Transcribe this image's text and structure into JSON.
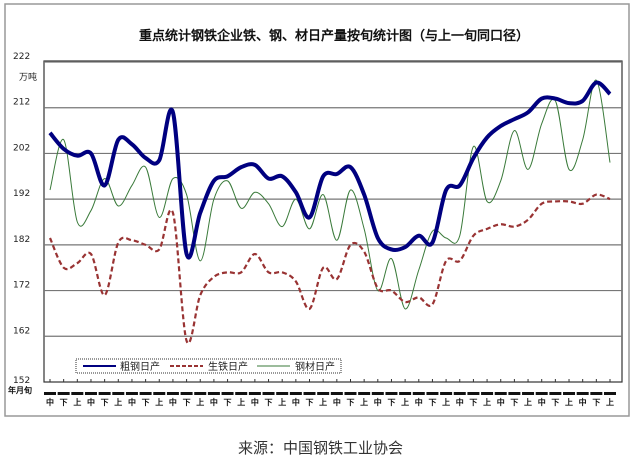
{
  "chart_data": {
    "type": "line",
    "title": "重点统计钢铁企业铁、钢、材日产量按旬统计图（与上一旬同口径）",
    "ylabel": "万吨",
    "xlabel": "年月旬",
    "ylim": [
      152,
      222
    ],
    "yticks": [
      222,
      212,
      202,
      192,
      182,
      172,
      162,
      152
    ],
    "grid": true,
    "legend_position": "bottom-left",
    "x_tenday_labels": [
      "中",
      "下",
      "上",
      "中",
      "下",
      "上",
      "中",
      "下",
      "上",
      "中",
      "下",
      "上",
      "中",
      "下",
      "上",
      "中",
      "下",
      "上",
      "中",
      "下",
      "上",
      "中",
      "下",
      "上",
      "中",
      "下",
      "上",
      "中",
      "下",
      "上",
      "中",
      "下",
      "上",
      "中",
      "下",
      "上",
      "中",
      "下",
      "上",
      "中",
      "下",
      "上"
    ],
    "series": [
      {
        "name": "粗钢日产",
        "color": "#000080",
        "style": "solid-thick",
        "values": [
          206.5,
          203,
          201.5,
          202,
          195,
          205,
          204,
          201,
          200.5,
          211,
          180,
          189,
          196,
          197,
          199,
          199.5,
          196.5,
          197,
          193.5,
          188,
          197,
          197.5,
          199,
          193,
          183.5,
          181,
          181.5,
          184,
          182.5,
          194,
          195,
          201,
          205.5,
          208,
          209.5,
          211,
          214,
          214,
          213,
          213.5,
          217.5,
          215
        ]
      },
      {
        "name": "生铁日产",
        "color": "#993333",
        "style": "dashed",
        "values": [
          183.5,
          177,
          178,
          180,
          171,
          182.5,
          183,
          182,
          181,
          189,
          161,
          171,
          175,
          176,
          176,
          180,
          176,
          176,
          174,
          168,
          177,
          174.5,
          182,
          180.5,
          172.5,
          172,
          169.5,
          170.5,
          169,
          178.5,
          178.5,
          184,
          185.5,
          186.5,
          186,
          187.5,
          191,
          191.5,
          191.5,
          191,
          193,
          192
        ]
      },
      {
        "name": "钢材日产",
        "color": "#3a7a3a",
        "style": "solid-thin",
        "values": [
          194,
          205,
          187,
          189.5,
          196.5,
          190.5,
          195,
          199,
          188,
          196.5,
          193,
          178.5,
          192,
          196,
          190,
          193.5,
          191,
          186,
          192,
          185.5,
          193,
          183,
          194,
          185.5,
          172,
          179,
          168,
          176.5,
          185,
          183.5,
          184,
          203.5,
          191.5,
          196,
          207,
          198.5,
          208.5,
          213.5,
          198.5,
          205,
          218,
          200
        ]
      }
    ]
  },
  "caption": "来源：中国钢铁工业协会"
}
